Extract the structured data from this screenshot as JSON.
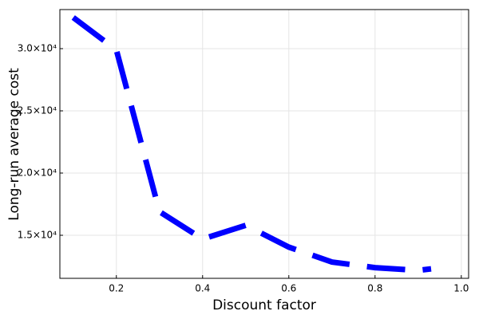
{
  "chart_data": {
    "type": "line",
    "x_label": "Discount factor",
    "y_label": "Long-run average cost",
    "x": [
      0.1,
      0.2,
      0.3,
      0.4,
      0.5,
      0.6,
      0.7,
      0.8,
      0.9,
      0.93
    ],
    "series": [
      {
        "color": "#0000ff",
        "values": [
          32500,
          29900,
          16900,
          14700,
          15800,
          14050,
          12850,
          12400,
          12180,
          12300
        ]
      }
    ],
    "xlim": [
      0.069,
      1.017
    ],
    "xticks": [
      0.2,
      0.4,
      0.6,
      0.8,
      {
        "value": 1,
        "label": "1.0"
      }
    ],
    "ylim": [
      11540,
      33140
    ],
    "yticks": [
      {
        "value": 15000,
        "label": "1.5×10⁴"
      },
      {
        "value": 20000,
        "label": "2.0×10⁴"
      },
      {
        "value": 25000,
        "label": "2.5×10⁴"
      },
      {
        "value": 30000,
        "label": "3.0×10⁴"
      }
    ],
    "grid": true,
    "line_style": "dashed"
  }
}
